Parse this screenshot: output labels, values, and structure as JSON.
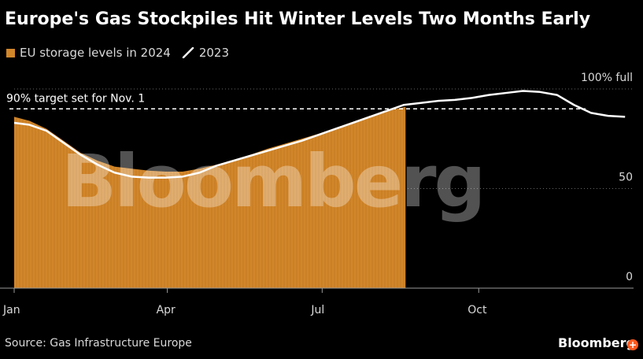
{
  "header": {
    "title": "Europe's Gas Stockpiles Hit Winter Levels Two Months Early"
  },
  "legend": {
    "items": [
      {
        "label": "EU storage levels in 2024",
        "kind": "bar",
        "color": "#d2862a"
      },
      {
        "label": "2023",
        "kind": "line",
        "color": "#ffffff"
      }
    ]
  },
  "footer": {
    "source": "Source: Gas Infrastructure Europe",
    "brand": "Bloomberg",
    "zoom_icon": "zoom-in-icon"
  },
  "watermark": "Bloomberg",
  "chart_data": {
    "type": "area",
    "title": "Europe's Gas Stockpiles Hit Winter Levels Two Months Early",
    "xlabel": "",
    "ylabel": "",
    "ylim": [
      0,
      100
    ],
    "grid": true,
    "legend_position": "top-left",
    "y_ticks": [
      {
        "value": 100,
        "label": "100% full"
      },
      {
        "value": 50,
        "label": "50"
      },
      {
        "value": 0,
        "label": "0"
      }
    ],
    "x_ticks": [
      {
        "day": 1,
        "label": "Jan"
      },
      {
        "day": 91,
        "label": "Apr"
      },
      {
        "day": 182,
        "label": "Jul"
      },
      {
        "day": 274,
        "label": "Oct"
      }
    ],
    "target": {
      "value": 90,
      "label": "90% target set for Nov. 1"
    },
    "series": [
      {
        "name": "EU storage levels in 2024",
        "kind": "area",
        "color": "#d2862a",
        "x_day": [
          1,
          10,
          20,
          30,
          40,
          50,
          60,
          70,
          80,
          90,
          100,
          110,
          120,
          130,
          140,
          150,
          160,
          170,
          180,
          190,
          200,
          210,
          220,
          231
        ],
        "values": [
          86,
          84,
          80,
          74,
          68,
          64,
          61,
          60,
          59,
          58.5,
          58.5,
          60,
          62,
          64.5,
          67,
          70,
          72.5,
          75,
          77.5,
          80.5,
          83.5,
          86.5,
          89,
          91
        ]
      },
      {
        "name": "2023",
        "kind": "line",
        "color": "#ffffff",
        "x_day": [
          1,
          10,
          20,
          30,
          40,
          50,
          60,
          70,
          80,
          90,
          100,
          110,
          120,
          130,
          140,
          150,
          160,
          170,
          180,
          190,
          200,
          210,
          220,
          230,
          240,
          250,
          260,
          270,
          280,
          290,
          300,
          310,
          320,
          330,
          340,
          350,
          360
        ],
        "values": [
          83,
          82,
          79,
          73,
          67,
          62,
          58,
          56,
          55.5,
          55.5,
          56,
          58,
          61.5,
          64,
          66.5,
          69,
          71.5,
          74,
          77,
          80,
          83,
          86,
          89,
          92,
          93,
          94,
          94.5,
          95.5,
          97,
          98,
          99,
          98.5,
          97,
          92,
          88,
          86.5,
          86
        ]
      }
    ]
  }
}
